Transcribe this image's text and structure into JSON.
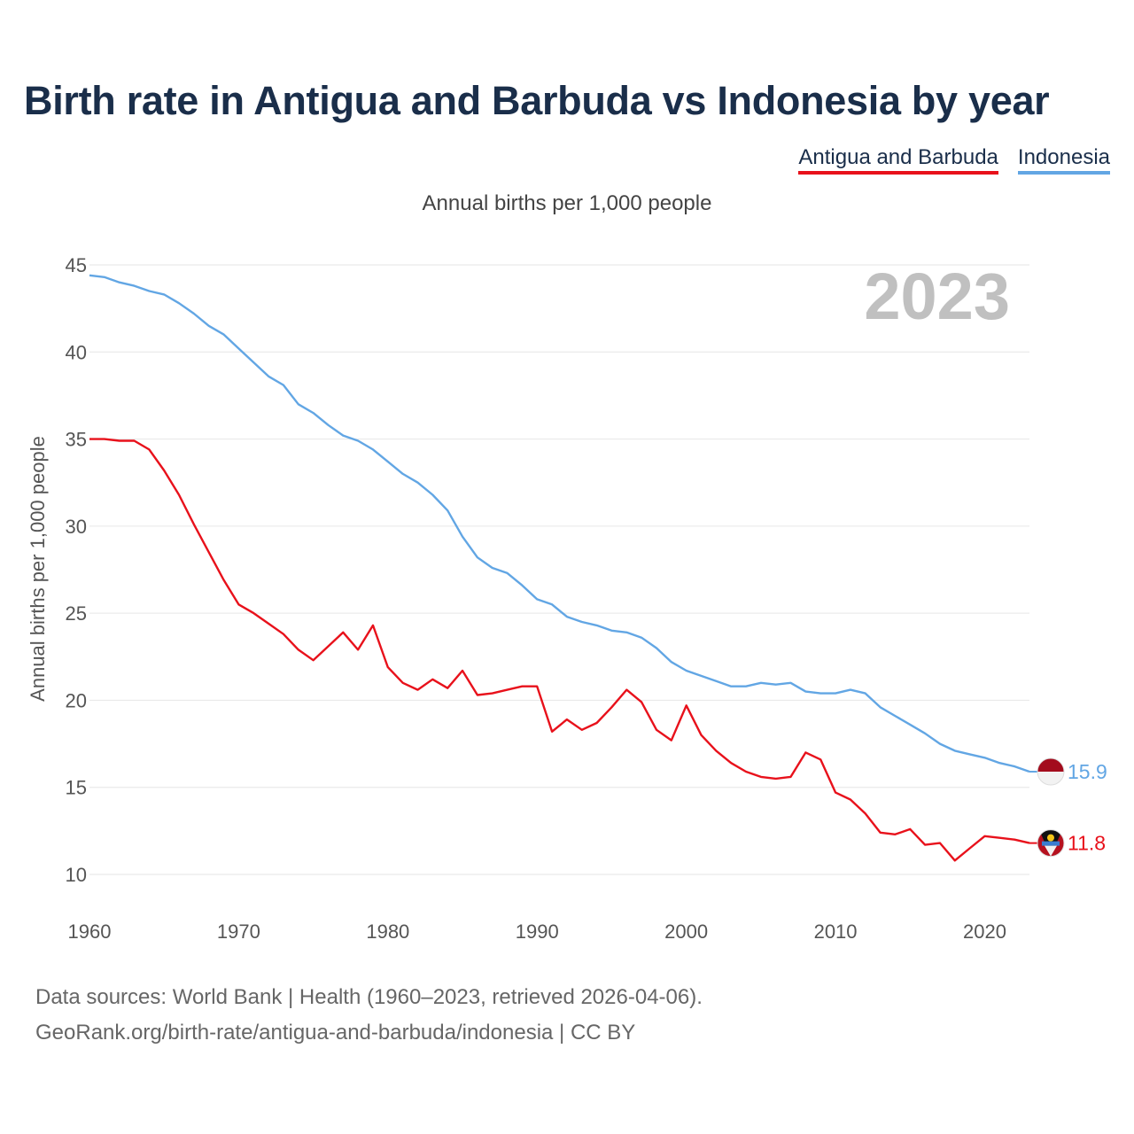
{
  "title": "Birth rate in Antigua and Barbuda vs Indonesia by year",
  "legend": [
    {
      "name": "Antigua and Barbuda",
      "color": "#e8111b"
    },
    {
      "name": "Indonesia",
      "color": "#62a6e4"
    }
  ],
  "subtitle": "Annual births per 1,000 people",
  "year_label": "2023",
  "source_line1": "Data sources: World Bank | Health (1960–2023, retrieved 2026-04-06).",
  "source_line2": "GeoRank.org/birth-rate/antigua-and-barbuda/indonesia | CC BY",
  "chart_data": {
    "type": "line",
    "title": "Birth rate in Antigua and Barbuda vs Indonesia by year",
    "xlabel": "",
    "ylabel": "Annual births per 1,000 people",
    "xlim": [
      1960,
      2023
    ],
    "ylim": [
      10,
      45
    ],
    "x_ticks": [
      1960,
      1970,
      1980,
      1990,
      2000,
      2010,
      2020
    ],
    "y_ticks": [
      10,
      15,
      20,
      25,
      30,
      35,
      40,
      45
    ],
    "x": [
      1960,
      1961,
      1962,
      1963,
      1964,
      1965,
      1966,
      1967,
      1968,
      1969,
      1970,
      1971,
      1972,
      1973,
      1974,
      1975,
      1976,
      1977,
      1978,
      1979,
      1980,
      1981,
      1982,
      1983,
      1984,
      1985,
      1986,
      1987,
      1988,
      1989,
      1990,
      1991,
      1992,
      1993,
      1994,
      1995,
      1996,
      1997,
      1998,
      1999,
      2000,
      2001,
      2002,
      2003,
      2004,
      2005,
      2006,
      2007,
      2008,
      2009,
      2010,
      2011,
      2012,
      2013,
      2014,
      2015,
      2016,
      2017,
      2018,
      2019,
      2020,
      2021,
      2022,
      2023
    ],
    "series": [
      {
        "name": "Antigua and Barbuda",
        "color": "#e8111b",
        "end_label": "11.8",
        "values": [
          35.0,
          35.0,
          34.9,
          34.9,
          34.4,
          33.2,
          31.8,
          30.1,
          28.5,
          26.9,
          25.5,
          25.0,
          24.4,
          23.8,
          22.9,
          22.3,
          23.1,
          23.9,
          22.9,
          24.3,
          21.9,
          21.0,
          20.6,
          21.2,
          20.7,
          21.7,
          20.3,
          20.4,
          20.6,
          20.8,
          20.8,
          18.2,
          18.9,
          18.3,
          18.7,
          19.6,
          20.6,
          19.9,
          18.3,
          17.7,
          19.7,
          18.0,
          17.1,
          16.4,
          15.9,
          15.6,
          15.5,
          15.6,
          17.0,
          16.6,
          14.7,
          14.3,
          13.5,
          12.4,
          12.3,
          12.6,
          11.7,
          11.8,
          10.8,
          11.5,
          12.2,
          12.1,
          12.0,
          11.8
        ]
      },
      {
        "name": "Indonesia",
        "color": "#62a6e4",
        "end_label": "15.9",
        "values": [
          44.4,
          44.3,
          44.0,
          43.8,
          43.5,
          43.3,
          42.8,
          42.2,
          41.5,
          41.0,
          40.2,
          39.4,
          38.6,
          38.1,
          37.0,
          36.5,
          35.8,
          35.2,
          34.9,
          34.4,
          33.7,
          33.0,
          32.5,
          31.8,
          30.9,
          29.4,
          28.2,
          27.6,
          27.3,
          26.6,
          25.8,
          25.5,
          24.8,
          24.5,
          24.3,
          24.0,
          23.9,
          23.6,
          23.0,
          22.2,
          21.7,
          21.4,
          21.1,
          20.8,
          20.8,
          21.0,
          20.9,
          21.0,
          20.5,
          20.4,
          20.4,
          20.6,
          20.4,
          19.6,
          19.1,
          18.6,
          18.1,
          17.5,
          17.1,
          16.9,
          16.7,
          16.4,
          16.2,
          15.9
        ]
      }
    ]
  }
}
